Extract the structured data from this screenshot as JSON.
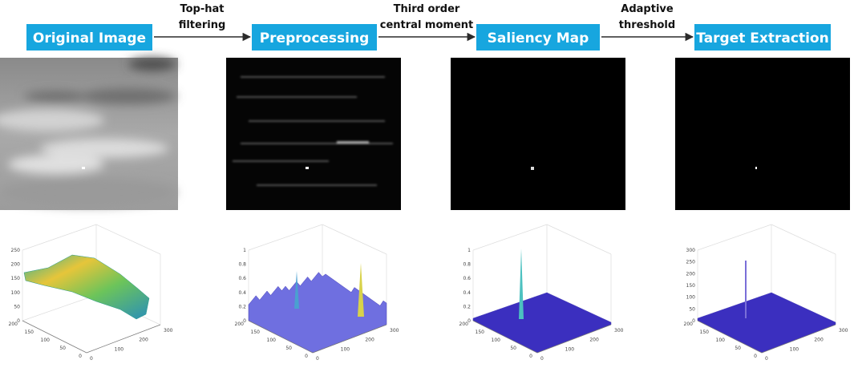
{
  "stages": [
    {
      "label": "Original Image",
      "plot": {
        "zticks": [
          0,
          50,
          100,
          150,
          200,
          250
        ],
        "yticks": [
          0,
          50,
          100,
          150,
          200
        ],
        "xticks": [
          0,
          100,
          200,
          300
        ]
      }
    },
    {
      "label": "Preprocessing",
      "plot": {
        "zticks": [
          0,
          0.2,
          0.4,
          0.6,
          0.8,
          1
        ],
        "yticks": [
          0,
          50,
          100,
          150,
          200
        ],
        "xticks": [
          0,
          100,
          200,
          300
        ]
      }
    },
    {
      "label": "Saliency Map",
      "plot": {
        "zticks": [
          0,
          0.2,
          0.4,
          0.6,
          0.8,
          1
        ],
        "yticks": [
          0,
          50,
          100,
          150,
          200
        ],
        "xticks": [
          0,
          100,
          200,
          300
        ]
      }
    },
    {
      "label": "Target Extraction",
      "plot": {
        "zticks": [
          0,
          50,
          100,
          150,
          200,
          250,
          300
        ],
        "yticks": [
          0,
          50,
          100,
          150,
          200
        ],
        "xticks": [
          0,
          100,
          200,
          300
        ]
      }
    }
  ],
  "arrows": [
    {
      "lines": [
        "Top-hat",
        "filtering"
      ]
    },
    {
      "lines": [
        "Third order",
        "central moment"
      ]
    },
    {
      "lines": [
        "Adaptive",
        "threshold"
      ]
    }
  ]
}
